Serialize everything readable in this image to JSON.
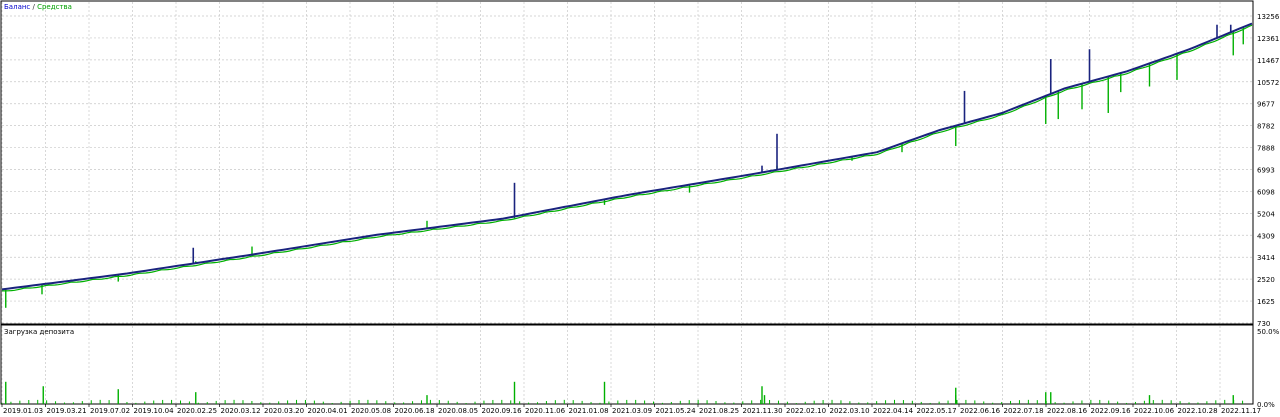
{
  "legend": {
    "balance_label": "Баланс",
    "separator": " / ",
    "equity_label": "Средства",
    "balance_color": "#0000cc",
    "equity_color": "#00a000"
  },
  "subpanel": {
    "title": "Загрузка депозита",
    "ytick_top": "50.0%",
    "ytick_bottom": "0.0%"
  },
  "chart_data": [
    {
      "type": "line",
      "series": [
        {
          "name": "Баланс",
          "color": "#1a237e"
        },
        {
          "name": "Средства",
          "color": "#00b000"
        }
      ],
      "y_ticks": [
        730,
        1625,
        2520,
        3414,
        4309,
        5204,
        6098,
        6993,
        7888,
        8782,
        9677,
        10572,
        11467,
        12361,
        13256
      ],
      "ylim": [
        730,
        13256
      ],
      "x_tick_labels": [
        "2019.01.03",
        "2019.03.21",
        "2019.07.02",
        "2019.10.04",
        "2020.02.25",
        "2020.03.12",
        "2020.03.20",
        "2020.04.01",
        "2020.05.08",
        "2020.06.18",
        "2020.08.05",
        "2020.09.16",
        "2020.11.06",
        "2021.01.08",
        "2021.03.09",
        "2021.05.24",
        "2021.08.25",
        "2021.11.30",
        "2022.02.10",
        "2022.03.10",
        "2022.04.14",
        "2022.05.17",
        "2022.06.16",
        "2022.07.18",
        "2022.08.16",
        "2022.09.16",
        "2022.10.06",
        "2022.10.28",
        "2022.11.17"
      ],
      "x": [
        0,
        0.1,
        0.2,
        0.3,
        0.4,
        0.5,
        0.6,
        0.7,
        0.75,
        0.8,
        0.85,
        0.9,
        0.95,
        1.0
      ],
      "balance": [
        2100,
        2750,
        3520,
        4330,
        4980,
        5950,
        6800,
        7700,
        8600,
        9300,
        10300,
        11000,
        11900,
        12950
      ],
      "equity_drawdowns": [
        {
          "x": 0.003,
          "low": 1350
        },
        {
          "x": 0.032,
          "low": 1900
        },
        {
          "x": 0.093,
          "low": 2420
        },
        {
          "x": 0.155,
          "low": 3250
        },
        {
          "x": 0.2,
          "low": 3850
        },
        {
          "x": 0.34,
          "low": 4900
        },
        {
          "x": 0.41,
          "low": 5000
        },
        {
          "x": 0.482,
          "low": 5550
        },
        {
          "x": 0.55,
          "low": 6050
        },
        {
          "x": 0.608,
          "low": 6850
        },
        {
          "x": 0.62,
          "low": 7150
        },
        {
          "x": 0.68,
          "low": 7350
        },
        {
          "x": 0.72,
          "low": 7700
        },
        {
          "x": 0.763,
          "low": 7950
        },
        {
          "x": 0.835,
          "low": 8850
        },
        {
          "x": 0.845,
          "low": 9050
        },
        {
          "x": 0.864,
          "low": 9450
        },
        {
          "x": 0.885,
          "low": 9300
        },
        {
          "x": 0.895,
          "low": 10150
        },
        {
          "x": 0.918,
          "low": 10380
        },
        {
          "x": 0.94,
          "low": 10650
        },
        {
          "x": 0.985,
          "low": 11650
        },
        {
          "x": 0.993,
          "low": 12100
        }
      ],
      "balance_spikes": [
        {
          "x": 0.153,
          "high": 3800
        },
        {
          "x": 0.41,
          "high": 6450
        },
        {
          "x": 0.608,
          "high": 7150
        },
        {
          "x": 0.62,
          "high": 8450
        },
        {
          "x": 0.77,
          "high": 10200
        },
        {
          "x": 0.839,
          "high": 11500
        },
        {
          "x": 0.87,
          "high": 11900
        },
        {
          "x": 0.972,
          "high": 12900
        },
        {
          "x": 0.983,
          "high": 12900
        }
      ]
    },
    {
      "type": "bar",
      "name": "Загрузка депозита",
      "ylim": [
        0,
        50
      ],
      "bars": [
        {
          "x": 0.003,
          "v": 15
        },
        {
          "x": 0.033,
          "v": 12
        },
        {
          "x": 0.093,
          "v": 10
        },
        {
          "x": 0.155,
          "v": 8
        },
        {
          "x": 0.34,
          "v": 6
        },
        {
          "x": 0.41,
          "v": 15
        },
        {
          "x": 0.482,
          "v": 15
        },
        {
          "x": 0.608,
          "v": 12
        },
        {
          "x": 0.61,
          "v": 6
        },
        {
          "x": 0.763,
          "v": 11
        },
        {
          "x": 0.763,
          "v": 6
        },
        {
          "x": 0.835,
          "v": 8
        },
        {
          "x": 0.839,
          "v": 8
        },
        {
          "x": 0.918,
          "v": 6
        },
        {
          "x": 0.985,
          "v": 6
        }
      ]
    }
  ]
}
